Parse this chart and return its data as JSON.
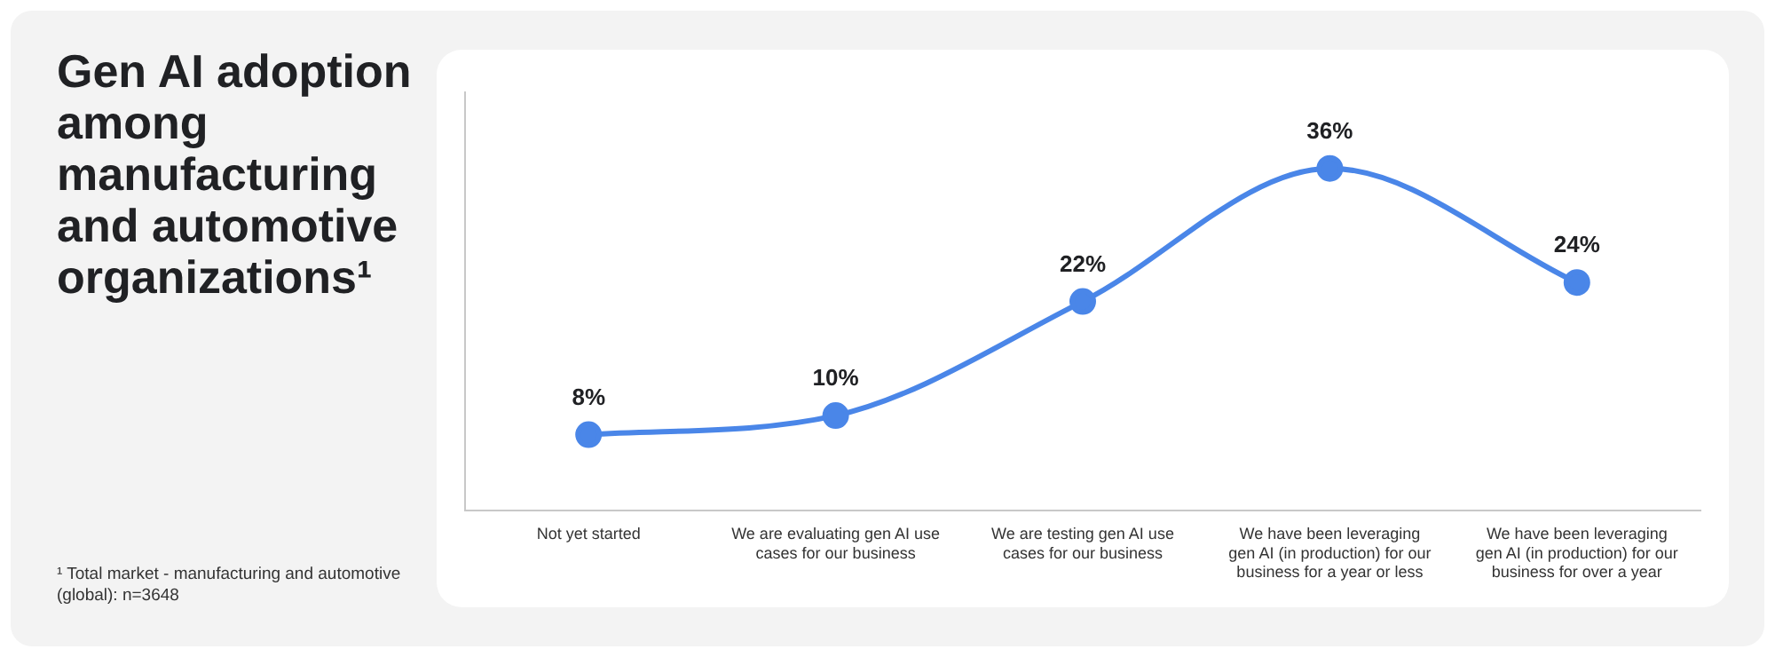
{
  "chart_data": {
    "type": "line",
    "title": "Gen AI adoption among manufacturing and automotive organizations¹",
    "categories": [
      "Not yet started",
      "We are evaluating gen AI use cases for our business",
      "We are testing gen AI use cases for our business",
      "We have been leveraging gen AI (in production) for our business for a year or less",
      "We have been leveraging gen AI (in production) for our business for over a year"
    ],
    "series": [
      {
        "color": "#4a86e8",
        "values": [
          8,
          10,
          22,
          36,
          24
        ],
        "value_labels": [
          "8%",
          "10%",
          "22%",
          "36%",
          "24%"
        ]
      }
    ],
    "ylim": [
      0,
      44
    ],
    "tick_labels": "x",
    "grid": false,
    "legend": false,
    "marker": "circle",
    "line_style": "solid",
    "annotations": [
      "¹ Total market - manufacturing and automotive (global): n=3648"
    ]
  }
}
